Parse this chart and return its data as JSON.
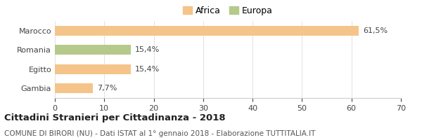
{
  "categories": [
    "Marocco",
    "Romania",
    "Egitto",
    "Gambia"
  ],
  "values": [
    61.5,
    15.4,
    15.4,
    7.7
  ],
  "labels": [
    "61,5%",
    "15,4%",
    "15,4%",
    "7,7%"
  ],
  "colors": [
    "#F5C48A",
    "#B5C98A",
    "#F5C48A",
    "#F5C48A"
  ],
  "legend": [
    {
      "label": "Africa",
      "color": "#F5C48A"
    },
    {
      "label": "Europa",
      "color": "#B5C98A"
    }
  ],
  "xlim": [
    0,
    70
  ],
  "xticks": [
    0,
    10,
    20,
    30,
    40,
    50,
    60,
    70
  ],
  "title": "Cittadini Stranieri per Cittadinanza - 2018",
  "subtitle": "COMUNE DI BIRORI (NU) - Dati ISTAT al 1° gennaio 2018 - Elaborazione TUTTITALIA.IT",
  "background_color": "#ffffff",
  "bar_height": 0.5,
  "title_fontsize": 9.5,
  "subtitle_fontsize": 7.5,
  "label_fontsize": 8,
  "tick_fontsize": 8,
  "legend_fontsize": 9
}
